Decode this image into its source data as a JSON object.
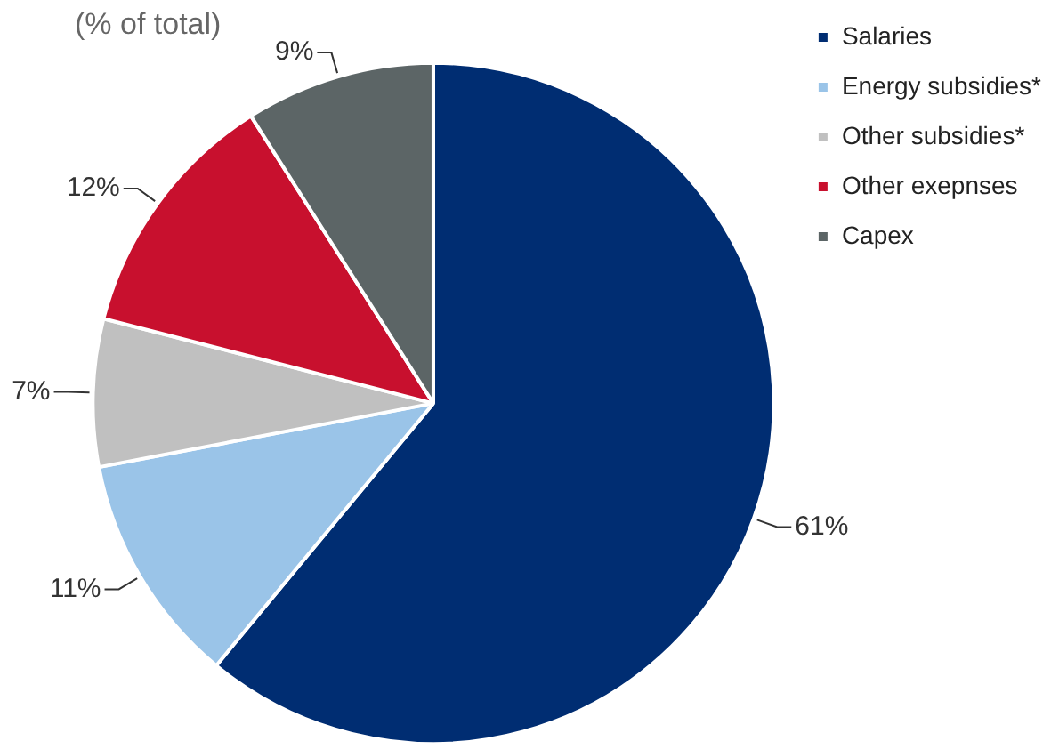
{
  "chart_data": {
    "type": "pie",
    "title": "(% of total)",
    "categories": [
      "Salaries",
      "Energy subsidies*",
      "Other subsidies*",
      "Other exepnses",
      "Capex"
    ],
    "values": [
      61,
      11,
      7,
      12,
      9
    ],
    "value_labels": [
      "61%",
      "11%",
      "7%",
      "12%",
      "9%"
    ],
    "colors": [
      "#002d72",
      "#9ac4e8",
      "#c0c0c0",
      "#c8102e",
      "#5c6566"
    ],
    "legend": "top right"
  }
}
